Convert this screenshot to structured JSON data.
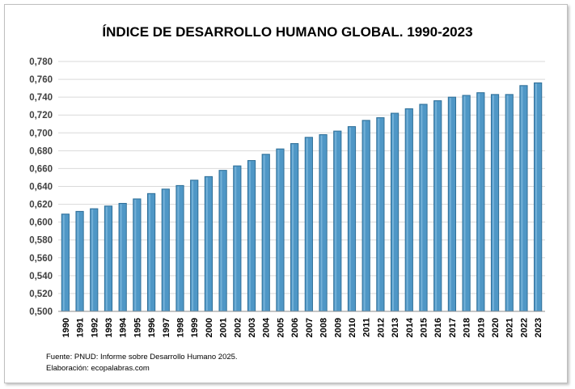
{
  "chart_data": {
    "type": "bar",
    "title": "ÍNDICE DE DESARROLLO HUMANO GLOBAL. 1990-2023",
    "categories": [
      "1990",
      "1991",
      "1992",
      "1993",
      "1994",
      "1995",
      "1996",
      "1997",
      "1998",
      "1999",
      "2000",
      "2001",
      "2002",
      "2003",
      "2004",
      "2005",
      "2006",
      "2007",
      "2008",
      "2009",
      "2010",
      "2011",
      "2012",
      "2013",
      "2014",
      "2015",
      "2016",
      "2017",
      "2018",
      "2019",
      "2020",
      "2021",
      "2022",
      "2023"
    ],
    "values": [
      0.609,
      0.612,
      0.615,
      0.618,
      0.621,
      0.626,
      0.632,
      0.637,
      0.641,
      0.647,
      0.651,
      0.658,
      0.663,
      0.669,
      0.676,
      0.682,
      0.688,
      0.695,
      0.698,
      0.702,
      0.707,
      0.714,
      0.717,
      0.722,
      0.727,
      0.732,
      0.736,
      0.74,
      0.742,
      0.745,
      0.743,
      0.743,
      0.753,
      0.756
    ],
    "ylim": [
      0.5,
      0.78
    ],
    "yticks": [
      "0,500",
      "0,520",
      "0,540",
      "0,560",
      "0,580",
      "0,600",
      "0,620",
      "0,640",
      "0,660",
      "0,680",
      "0,700",
      "0,720",
      "0,740",
      "0,760",
      "0,780"
    ],
    "grid": true,
    "bar_color": "#4f97c6",
    "bar_edge_color": "#2f6f98",
    "xlabel": "",
    "ylabel": ""
  },
  "source": {
    "line1": "Fuente: PNUD: Informe sobre Desarrollo Humano 2025.",
    "line2": "Elaboración: ecopalabras.com"
  }
}
